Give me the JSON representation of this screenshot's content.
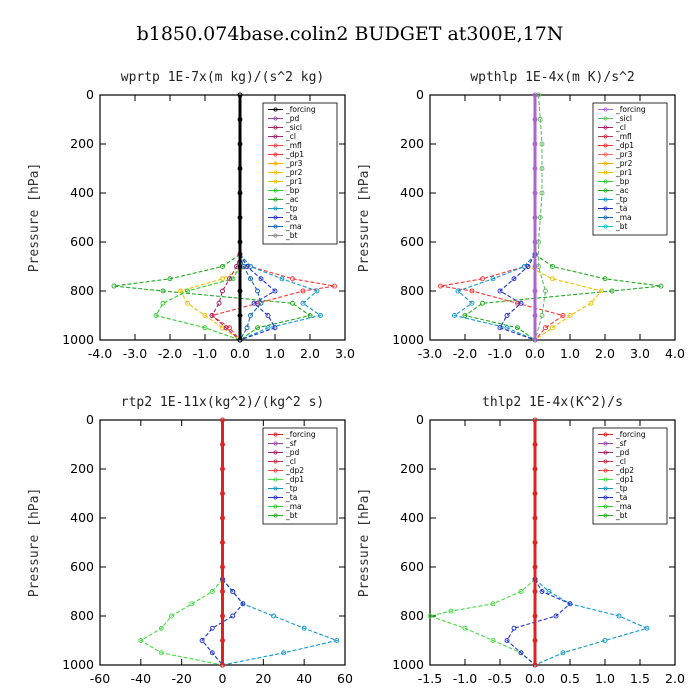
{
  "title": "b1850.074base.colin2  BUDGET at300E,17N",
  "y_axis_label": "Pressure [hPa]",
  "chart_data": [
    {
      "type": "line",
      "title": "wprtp  1E-7x(m kg)/(s^2 kg)",
      "xlim": [
        -4,
        3
      ],
      "xticks": [
        -4,
        -3,
        -2,
        -1,
        0,
        1,
        2,
        3
      ],
      "xtick_labels": [
        "-4.0",
        "-3.0",
        "-2.0",
        "-1.0",
        "0.0",
        "1.0",
        "2.0",
        "3.0"
      ],
      "ylim": [
        1000,
        0
      ],
      "yticks": [
        0,
        200,
        400,
        600,
        800,
        1000
      ],
      "ylabel": "Pressure [hPa]",
      "legend_position": "top-right",
      "legend": [
        "_forcing",
        "_pd",
        "_sicl",
        "_cl",
        "_mfl",
        "_dp1",
        "_pr3",
        "_pr2",
        "_pr1",
        "_bp",
        "_ac",
        "_tp",
        "_ta",
        "_ma",
        "_bt"
      ],
      "series": [
        {
          "name": "_ac",
          "color": "#22aa22",
          "y": [
            650,
            700,
            750,
            780,
            800,
            850,
            900,
            950,
            1000
          ],
          "x": [
            0,
            -0.5,
            -2.0,
            -3.6,
            -2.2,
            1.5,
            2.0,
            0.5,
            0
          ]
        },
        {
          "name": "_pr1",
          "color": "#f0c000",
          "y": [
            650,
            700,
            750,
            800,
            850,
            900,
            950,
            1000
          ],
          "x": [
            0,
            0.2,
            -0.5,
            -1.7,
            -1.5,
            -1.0,
            -0.5,
            0
          ]
        },
        {
          "name": "_bp",
          "color": "#33cc33",
          "y": [
            650,
            700,
            750,
            800,
            850,
            900,
            950,
            1000
          ],
          "x": [
            0,
            0,
            -0.2,
            -1.5,
            -2.2,
            -2.4,
            -1.0,
            0
          ]
        },
        {
          "name": "_dp1",
          "color": "#ff3333",
          "y": [
            650,
            700,
            750,
            780,
            800,
            850,
            900,
            950,
            1000
          ],
          "x": [
            0,
            0.3,
            1.5,
            2.7,
            1.8,
            0.5,
            -0.8,
            -0.3,
            0
          ]
        },
        {
          "name": "_tp",
          "color": "#1199cc",
          "y": [
            650,
            700,
            750,
            800,
            850,
            900,
            950,
            1000
          ],
          "x": [
            0,
            0.3,
            1.2,
            2.2,
            1.8,
            2.3,
            0.8,
            0
          ]
        },
        {
          "name": "_ta",
          "color": "#2233cc",
          "y": [
            650,
            700,
            750,
            800,
            850,
            900,
            950,
            1000
          ],
          "x": [
            0,
            0.2,
            0.6,
            1.0,
            0.4,
            0.8,
            1.0,
            0
          ]
        },
        {
          "name": "_ma",
          "color": "#1166bb",
          "y": [
            650,
            700,
            750,
            800,
            850,
            900,
            950,
            1000
          ],
          "x": [
            0,
            0.1,
            0.3,
            0.5,
            0.6,
            0.3,
            0.2,
            0
          ]
        },
        {
          "name": "_cl",
          "color": "#aa2266",
          "y": [
            650,
            700,
            750,
            800,
            850,
            900,
            950,
            1000
          ],
          "x": [
            0,
            -0.1,
            -0.3,
            -0.5,
            -0.6,
            -0.8,
            -0.4,
            0
          ]
        },
        {
          "name": "_forcing",
          "color": "#000000",
          "y": [
            0,
            100,
            200,
            300,
            400,
            500,
            600,
            700,
            800,
            900,
            1000
          ],
          "x": [
            0,
            0,
            0,
            0,
            0,
            0,
            0,
            0,
            0,
            0,
            0
          ]
        }
      ]
    },
    {
      "type": "line",
      "title": "wpthlp  1E-4x(m K)/s^2",
      "xlim": [
        -3,
        4
      ],
      "xticks": [
        -3,
        -2,
        -1,
        0,
        1,
        2,
        3,
        4
      ],
      "xtick_labels": [
        "-3.0",
        "-2.0",
        "-1.0",
        "0.0",
        "1.0",
        "2.0",
        "3.0",
        "4.0"
      ],
      "ylim": [
        1000,
        0
      ],
      "yticks": [
        0,
        200,
        400,
        600,
        800,
        1000
      ],
      "ylabel": "Pressure [hPa]",
      "legend_position": "top-right",
      "legend": [
        "_forcing",
        "_sicl",
        "_cl",
        "_mfl",
        "_dp1",
        "_pr3",
        "_pr2",
        "_pr1",
        "_bp",
        "_ac",
        "_tp",
        "_ta",
        "_ma",
        "_bt"
      ],
      "series": [
        {
          "name": "_ac",
          "color": "#22aa22",
          "y": [
            650,
            700,
            750,
            780,
            800,
            850,
            900,
            950,
            1000
          ],
          "x": [
            0,
            0.5,
            2.0,
            3.6,
            2.2,
            -1.5,
            -2.0,
            -0.5,
            0
          ]
        },
        {
          "name": "_pr1",
          "color": "#f0c000",
          "y": [
            650,
            700,
            750,
            800,
            850,
            900,
            950,
            1000
          ],
          "x": [
            0,
            -0.2,
            0.5,
            1.9,
            1.6,
            1.0,
            0.5,
            0
          ]
        },
        {
          "name": "_dp1",
          "color": "#ff3333",
          "y": [
            650,
            700,
            750,
            780,
            800,
            850,
            900,
            950,
            1000
          ],
          "x": [
            0,
            -0.3,
            -1.5,
            -2.7,
            -1.8,
            -0.5,
            0.8,
            0.3,
            0
          ]
        },
        {
          "name": "_tp",
          "color": "#1199cc",
          "y": [
            650,
            700,
            750,
            800,
            850,
            900,
            950,
            1000
          ],
          "x": [
            0,
            -0.3,
            -1.2,
            -2.2,
            -1.8,
            -2.3,
            -0.8,
            0
          ]
        },
        {
          "name": "_ta",
          "color": "#2233cc",
          "y": [
            650,
            700,
            750,
            800,
            850,
            900,
            950,
            1000
          ],
          "x": [
            0,
            -0.2,
            -0.6,
            -1.0,
            -0.4,
            -0.8,
            -1.0,
            0
          ]
        },
        {
          "name": "_sicl",
          "color": "#66bb66",
          "y": [
            0,
            100,
            200,
            300,
            400,
            500,
            600,
            700,
            800,
            900,
            1000
          ],
          "x": [
            0.1,
            0.15,
            0.2,
            0.2,
            0.2,
            0.15,
            0.1,
            0.1,
            0.3,
            0.2,
            0
          ]
        },
        {
          "name": "_forcing",
          "color": "#aa66cc",
          "y": [
            0,
            100,
            200,
            300,
            400,
            500,
            600,
            700,
            800,
            900,
            1000
          ],
          "x": [
            0,
            0,
            0,
            0,
            0,
            0,
            0,
            0,
            0,
            0,
            0
          ]
        }
      ]
    },
    {
      "type": "line",
      "title": "rtp2  1E-11x(kg^2)/(kg^2 s)",
      "xlim": [
        -60,
        60
      ],
      "xticks": [
        -60,
        -40,
        -20,
        0,
        20,
        40,
        60
      ],
      "xtick_labels": [
        "-60",
        "-40",
        "-20",
        "0",
        "20",
        "40",
        "60"
      ],
      "ylim": [
        1000,
        0
      ],
      "yticks": [
        0,
        200,
        400,
        600,
        800,
        1000
      ],
      "ylabel": "Pressure [hPa]",
      "legend_position": "top-right",
      "legend": [
        "_forcing",
        "_sf",
        "_pd",
        "_cl",
        "_dp2",
        "_dp1",
        "_tp",
        "_ta",
        "_ma",
        "_bt"
      ],
      "series": [
        {
          "name": "_dp1",
          "color": "#44dd44",
          "y": [
            650,
            700,
            750,
            800,
            850,
            900,
            950,
            1000
          ],
          "x": [
            0,
            -5,
            -15,
            -25,
            -30,
            -40,
            -30,
            0
          ]
        },
        {
          "name": "_tp",
          "color": "#1199cc",
          "y": [
            650,
            700,
            750,
            800,
            850,
            900,
            950,
            1000
          ],
          "x": [
            0,
            5,
            10,
            25,
            40,
            56,
            30,
            0
          ]
        },
        {
          "name": "_ta",
          "color": "#2233cc",
          "y": [
            650,
            700,
            750,
            800,
            850,
            900,
            950,
            1000
          ],
          "x": [
            0,
            5,
            10,
            5,
            -5,
            -10,
            -5,
            0
          ]
        },
        {
          "name": "_forcing",
          "color": "#dd2222",
          "y": [
            0,
            100,
            200,
            300,
            400,
            500,
            600,
            700,
            800,
            900,
            1000
          ],
          "x": [
            0,
            0,
            0,
            0,
            0,
            0,
            0,
            0,
            0,
            0,
            0
          ]
        }
      ]
    },
    {
      "type": "line",
      "title": "thlp2  1E-4x(K^2)/s",
      "xlim": [
        -1.5,
        2.0
      ],
      "xticks": [
        -1.5,
        -1.0,
        -0.5,
        0.0,
        0.5,
        1.0,
        1.5,
        2.0
      ],
      "xtick_labels": [
        "-1.5",
        "-1.0",
        "-0.5",
        "0.0",
        "0.5",
        "1.0",
        "1.5",
        "2.0"
      ],
      "ylim": [
        1000,
        0
      ],
      "yticks": [
        0,
        200,
        400,
        600,
        800,
        1000
      ],
      "ylabel": "Pressure [hPa]",
      "legend_position": "top-right",
      "legend": [
        "_forcing",
        "_sf",
        "_pd",
        "_cl",
        "_dp2",
        "_dp1",
        "_tp",
        "_ta",
        "_ma",
        "_bt"
      ],
      "series": [
        {
          "name": "_dp1",
          "color": "#44dd44",
          "y": [
            650,
            700,
            750,
            780,
            800,
            850,
            900,
            950,
            1000
          ],
          "x": [
            0,
            -0.2,
            -0.6,
            -1.2,
            -1.5,
            -1.0,
            -0.6,
            -0.2,
            0
          ]
        },
        {
          "name": "_tp",
          "color": "#1199cc",
          "y": [
            650,
            700,
            750,
            800,
            850,
            900,
            950,
            1000
          ],
          "x": [
            0,
            0.2,
            0.5,
            1.2,
            1.6,
            1.0,
            0.4,
            0
          ]
        },
        {
          "name": "_ta",
          "color": "#2233cc",
          "y": [
            650,
            700,
            750,
            800,
            850,
            900,
            950,
            1000
          ],
          "x": [
            0,
            0.1,
            0.5,
            0.3,
            -0.3,
            -0.4,
            -0.2,
            0
          ]
        },
        {
          "name": "_forcing",
          "color": "#dd2222",
          "y": [
            0,
            100,
            200,
            300,
            400,
            500,
            600,
            700,
            800,
            900,
            1000
          ],
          "x": [
            0,
            0,
            0,
            0,
            0,
            0,
            0,
            0,
            0,
            0,
            0
          ]
        }
      ]
    }
  ]
}
